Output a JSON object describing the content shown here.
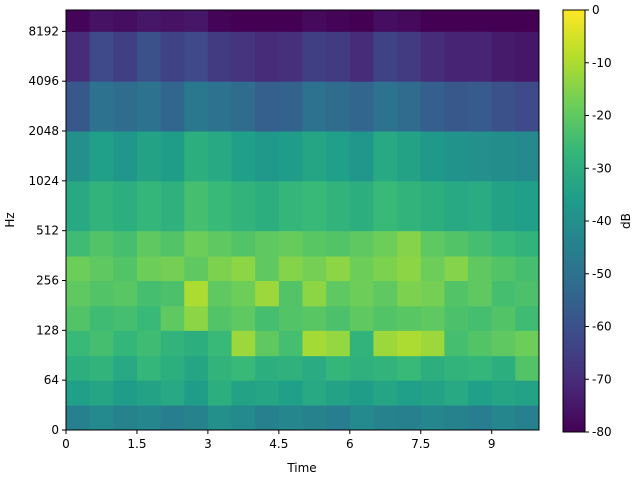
{
  "chart_data": {
    "type": "heatmap",
    "xlabel": "Time",
    "ylabel": "Hz",
    "colorbar_label": "dB",
    "colormap": "viridis",
    "yscale": "symlog",
    "linthresh": 64,
    "xlim": [
      0,
      10
    ],
    "xticks": [
      0,
      1.5,
      3,
      4.5,
      6,
      7.5,
      9
    ],
    "ylim": [
      0,
      11025
    ],
    "yticks": [
      0,
      64,
      128,
      256,
      512,
      1024,
      2048,
      4096,
      8192
    ],
    "clim": [
      -80,
      0
    ],
    "cticks": [
      0,
      -10,
      -20,
      -30,
      -40,
      -50,
      -60,
      -70,
      -80
    ],
    "x_edges": [
      0,
      0.5,
      1,
      1.5,
      2,
      2.5,
      3,
      3.5,
      4,
      4.5,
      5,
      5.5,
      6,
      6.5,
      7,
      7.5,
      8,
      8.5,
      9,
      9.5,
      10
    ],
    "y_edges": [
      0,
      32,
      64,
      90,
      128,
      180,
      256,
      360,
      512,
      1024,
      2048,
      4096,
      8192,
      11025
    ],
    "z": [
      [
        -45,
        -42,
        -44,
        -43,
        -46,
        -44,
        -40,
        -42,
        -45,
        -43,
        -44,
        -46,
        -42,
        -44,
        -45,
        -43,
        -44,
        -46,
        -43,
        -45
      ],
      [
        -35,
        -33,
        -36,
        -34,
        -32,
        -36,
        -30,
        -34,
        -33,
        -35,
        -32,
        -34,
        -36,
        -33,
        -35,
        -34,
        -32,
        -35,
        -33,
        -34
      ],
      [
        -30,
        -28,
        -32,
        -27,
        -30,
        -33,
        -28,
        -26,
        -30,
        -29,
        -31,
        -27,
        -29,
        -28,
        -26,
        -30,
        -28,
        -27,
        -30,
        -22
      ],
      [
        -26,
        -24,
        -27,
        -25,
        -28,
        -30,
        -26,
        -12,
        -20,
        -24,
        -11,
        -13,
        -28,
        -12,
        -10,
        -12,
        -24,
        -22,
        -20,
        -18
      ],
      [
        -22,
        -25,
        -24,
        -26,
        -20,
        -14,
        -22,
        -20,
        -24,
        -22,
        -21,
        -23,
        -20,
        -22,
        -21,
        -20,
        -23,
        -24,
        -22,
        -25
      ],
      [
        -20,
        -22,
        -21,
        -24,
        -23,
        -10,
        -20,
        -18,
        -12,
        -22,
        -14,
        -20,
        -18,
        -20,
        -16,
        -17,
        -22,
        -20,
        -24,
        -23
      ],
      [
        -18,
        -20,
        -22,
        -18,
        -17,
        -20,
        -16,
        -14,
        -20,
        -15,
        -17,
        -14,
        -18,
        -16,
        -14,
        -18,
        -15,
        -20,
        -22,
        -24
      ],
      [
        -25,
        -22,
        -24,
        -20,
        -22,
        -18,
        -20,
        -22,
        -20,
        -19,
        -21,
        -22,
        -20,
        -18,
        -15,
        -20,
        -22,
        -24,
        -26,
        -28
      ],
      [
        -32,
        -28,
        -30,
        -27,
        -29,
        -24,
        -26,
        -28,
        -30,
        -27,
        -26,
        -28,
        -30,
        -26,
        -28,
        -30,
        -32,
        -31,
        -34,
        -35
      ],
      [
        -40,
        -35,
        -38,
        -34,
        -36,
        -30,
        -32,
        -35,
        -37,
        -36,
        -33,
        -35,
        -38,
        -32,
        -34,
        -37,
        -39,
        -40,
        -41,
        -42
      ],
      [
        -58,
        -50,
        -52,
        -50,
        -54,
        -48,
        -50,
        -52,
        -56,
        -55,
        -50,
        -52,
        -54,
        -50,
        -52,
        -56,
        -58,
        -57,
        -60,
        -62
      ],
      [
        -70,
        -62,
        -65,
        -60,
        -64,
        -62,
        -66,
        -68,
        -70,
        -69,
        -65,
        -66,
        -70,
        -64,
        -66,
        -70,
        -72,
        -72,
        -74,
        -75
      ],
      [
        -79,
        -76,
        -77,
        -75,
        -76,
        -75,
        -79,
        -80,
        -80,
        -80,
        -78,
        -79,
        -80,
        -77,
        -78,
        -80,
        -80,
        -80,
        -80,
        -80
      ]
    ]
  }
}
